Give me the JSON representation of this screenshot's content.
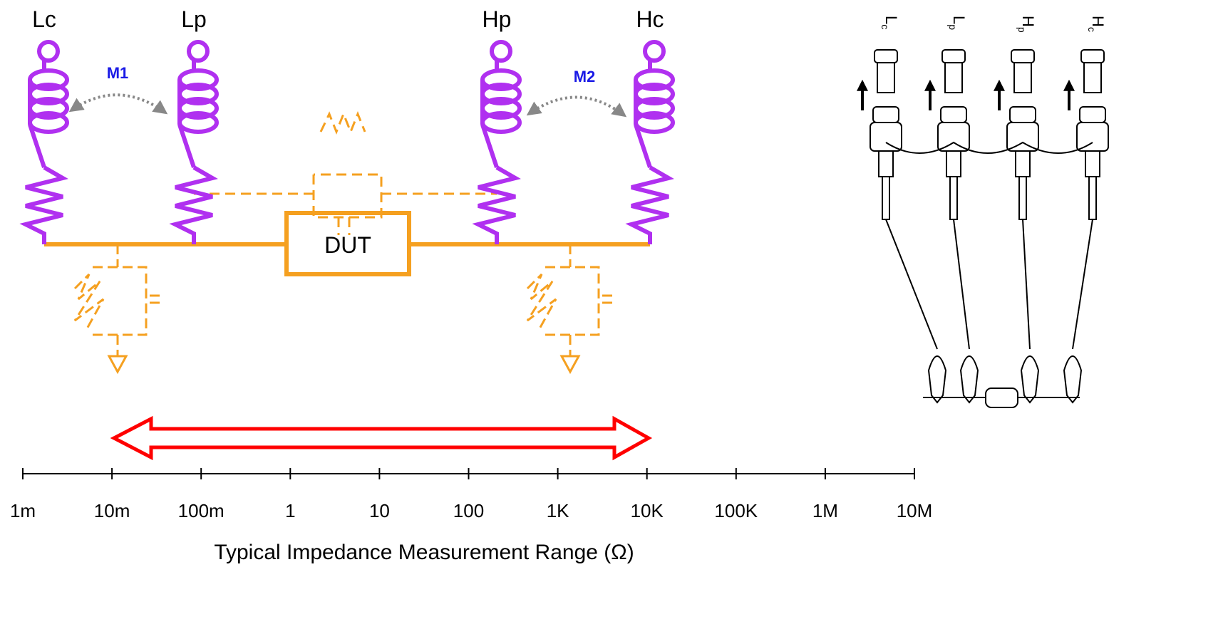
{
  "terminals": [
    "Lc",
    "Lp",
    "Hp",
    "Hc"
  ],
  "mutual": [
    "M1",
    "M2"
  ],
  "dut": "DUT",
  "axis": {
    "ticks": [
      "1m",
      "10m",
      "100m",
      "1",
      "10",
      "100",
      "1K",
      "10K",
      "100K",
      "1M",
      "10M"
    ],
    "title": "Typical Impedance Measurement Range (Ω)"
  },
  "probe_labels": [
    {
      "main": "L",
      "sub": "c"
    },
    {
      "main": "L",
      "sub": "p"
    },
    {
      "main": "H",
      "sub": "p"
    },
    {
      "main": "H",
      "sub": "c"
    }
  ]
}
